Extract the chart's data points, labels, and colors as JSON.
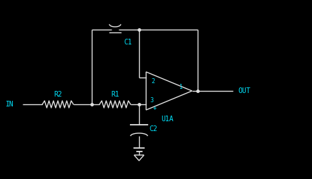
{
  "bg_color": "#000000",
  "line_color": "#e0e0e0",
  "text_color": "#00e5ff",
  "label_IN": "IN",
  "label_OUT": "OUT",
  "label_R2": "R2",
  "label_R1": "R1",
  "label_C1": "C1",
  "label_C2": "C2",
  "label_U1A": "U1A",
  "label_1": "1",
  "label_2": "2",
  "label_3": "3",
  "label_plus": "+",
  "figsize": [
    4.42,
    2.54
  ],
  "dpi": 100
}
